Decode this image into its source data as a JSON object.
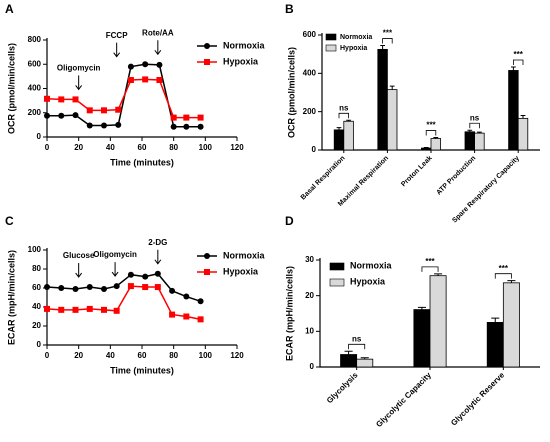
{
  "chart_data": [
    {
      "panel_label": "A",
      "type": "line",
      "xlabel": "Time (minutes)",
      "ylabel": "OCR (pmol/min/cells)",
      "xlim": [
        0,
        120
      ],
      "xticks": [
        0,
        20,
        40,
        60,
        80,
        100,
        120
      ],
      "ylim": [
        0,
        800
      ],
      "yticks": [
        0,
        200,
        400,
        600,
        800
      ],
      "legend": "upper right",
      "x": [
        0,
        9,
        18,
        27,
        36,
        45,
        53,
        62,
        71,
        80,
        88,
        97
      ],
      "series": [
        {
          "name": "Normoxia",
          "color": "#000000",
          "marker": "circle",
          "values": [
            175,
            175,
            180,
            95,
            95,
            100,
            580,
            600,
            595,
            85,
            85,
            85
          ]
        },
        {
          "name": "Hypoxia",
          "color": "#ff0000",
          "marker": "square",
          "values": [
            315,
            310,
            310,
            220,
            220,
            225,
            470,
            475,
            470,
            160,
            160,
            160
          ]
        }
      ],
      "annotations": [
        {
          "text": "Oligomycin",
          "x": 20
        },
        {
          "text": "FCCP",
          "x": 44
        },
        {
          "text": "Rote/AA",
          "x": 70
        }
      ]
    },
    {
      "panel_label": "B",
      "type": "bar",
      "ylabel": "OCR (pmol/min/cells)",
      "ylim": [
        0,
        600
      ],
      "yticks": [
        0,
        200,
        400,
        600
      ],
      "legend": "upper left",
      "categories": [
        "Basal Respiration",
        "Maximal Respiration",
        "Proton Leak",
        "ATP Production",
        "Spare Respiratory Capacity"
      ],
      "series": [
        {
          "name": "Normoxia",
          "color": "#000000",
          "values": [
            105,
            525,
            10,
            95,
            415
          ],
          "errors": [
            12,
            20,
            3,
            8,
            18
          ]
        },
        {
          "name": "Hypoxia",
          "color": "#d9d9d9",
          "values": [
            150,
            315,
            60,
            88,
            165
          ],
          "errors": [
            5,
            18,
            5,
            5,
            15
          ]
        }
      ],
      "significance": [
        "ns",
        "***",
        "***",
        "ns",
        "***"
      ]
    },
    {
      "panel_label": "C",
      "type": "line",
      "xlabel": "Time (minutes)",
      "ylabel": "ECAR (mpH/min/cells)",
      "xlim": [
        0,
        120
      ],
      "xticks": [
        0,
        20,
        40,
        60,
        80,
        100,
        120
      ],
      "ylim": [
        0,
        100
      ],
      "yticks": [
        0,
        20,
        40,
        60,
        80,
        100
      ],
      "legend": "upper right",
      "x": [
        0,
        9,
        18,
        27,
        36,
        44,
        53,
        62,
        70,
        79,
        88,
        97
      ],
      "series": [
        {
          "name": "Normoxia",
          "color": "#000000",
          "marker": "circle",
          "values": [
            61,
            60,
            59,
            61,
            59,
            62,
            74,
            72,
            75,
            57,
            51,
            46
          ]
        },
        {
          "name": "Hypoxia",
          "color": "#ff0000",
          "marker": "square",
          "values": [
            38,
            37,
            37,
            38,
            37,
            36,
            62,
            61,
            61,
            32,
            30,
            27
          ]
        }
      ],
      "annotations": [
        {
          "text": "Glucose",
          "x": 20
        },
        {
          "text": "Oligomycin",
          "x": 43
        },
        {
          "text": "2-DG",
          "x": 70
        }
      ]
    },
    {
      "panel_label": "D",
      "type": "bar",
      "ylabel": "ECAR (mpH/min/cells)",
      "ylim": [
        0,
        30
      ],
      "yticks": [
        0,
        10,
        20,
        30
      ],
      "legend": "upper left",
      "categories": [
        "Glycolysis",
        "Glycolytic Capacity",
        "Glycolytic Reserve"
      ],
      "series": [
        {
          "name": "Normoxia",
          "color": "#000000",
          "values": [
            3.5,
            16.1,
            12.5
          ],
          "errors": [
            0.9,
            0.6,
            1.2
          ]
        },
        {
          "name": "Hypoxia",
          "color": "#d9d9d9",
          "values": [
            2.2,
            25.6,
            23.6
          ],
          "errors": [
            0.4,
            0.5,
            0.6
          ]
        }
      ],
      "significance": [
        "ns",
        "***",
        "***"
      ]
    }
  ]
}
